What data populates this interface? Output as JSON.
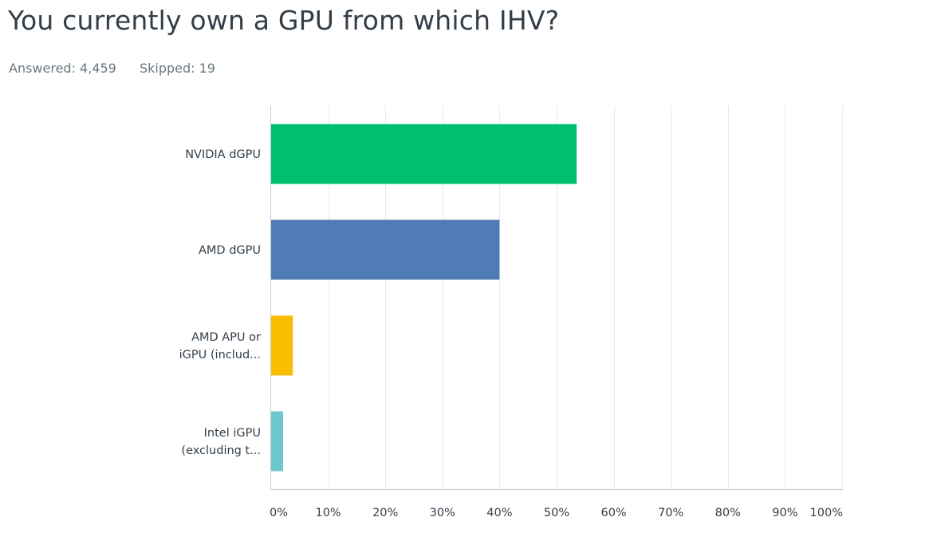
{
  "question": {
    "title": "You currently own a GPU from which IHV?",
    "answered_label": "Answered: 4,459",
    "skipped_label": "Skipped: 19"
  },
  "chart_data": {
    "type": "bar",
    "orientation": "horizontal",
    "categories": [
      [
        "NVIDIA dGPU"
      ],
      [
        "AMD dGPU"
      ],
      [
        "AMD APU or",
        "iGPU (includ..."
      ],
      [
        "Intel iGPU",
        "(excluding t..."
      ]
    ],
    "values": [
      53.5,
      40.0,
      3.8,
      2.1
    ],
    "value_unit": "%",
    "colors": [
      "#00bf6f",
      "#507cb6",
      "#f9be00",
      "#6bc8cd"
    ],
    "xlim": [
      0,
      100
    ],
    "xticks": [
      "0%",
      "10%",
      "20%",
      "30%",
      "40%",
      "50%",
      "60%",
      "70%",
      "80%",
      "90%",
      "100%"
    ],
    "grid": true,
    "legend": "none"
  }
}
